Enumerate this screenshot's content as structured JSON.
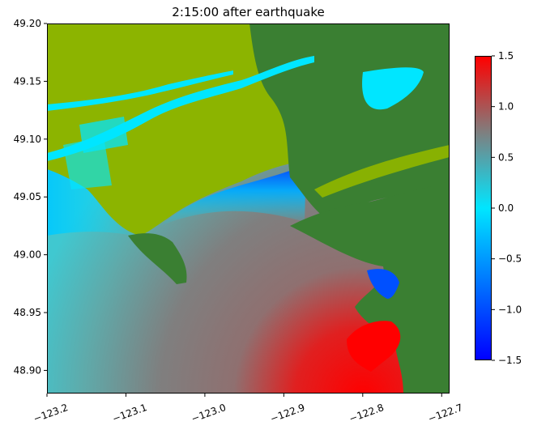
{
  "chart_data": {
    "type": "heatmap",
    "title": "2:15:00 after earthquake",
    "xlabel": "",
    "ylabel": "",
    "xlim": [
      -123.2,
      -122.69
    ],
    "ylim": [
      48.88,
      49.2
    ],
    "x_ticks": [
      -123.2,
      -123.1,
      -123.0,
      -122.9,
      -122.8,
      -122.7
    ],
    "x_tick_labels": [
      "−123.2",
      "−123.1",
      "−123.0",
      "−122.9",
      "−122.8",
      "−122.7"
    ],
    "y_ticks": [
      48.9,
      48.95,
      49.0,
      49.05,
      49.1,
      49.15,
      49.2
    ],
    "y_tick_labels": [
      "48.90",
      "48.95",
      "49.00",
      "49.05",
      "49.10",
      "49.15",
      "49.20"
    ],
    "colorbar": {
      "vmin": -1.5,
      "vmax": 1.5,
      "ticks": [
        -1.5,
        -1.0,
        -0.5,
        0.0,
        0.5,
        1.0,
        1.5
      ],
      "tick_labels": [
        "−1.5",
        "−1.0",
        "−0.5",
        "0.0",
        "0.5",
        "1.0",
        "1.5"
      ],
      "colors": [
        "#0000ff",
        "#00e6ff",
        "#7f7f7f",
        "#ff0000"
      ],
      "placement": "right"
    },
    "land_colors": {
      "lowland": "#8cb400",
      "highland": "#3a7f32"
    },
    "grid": false
  }
}
